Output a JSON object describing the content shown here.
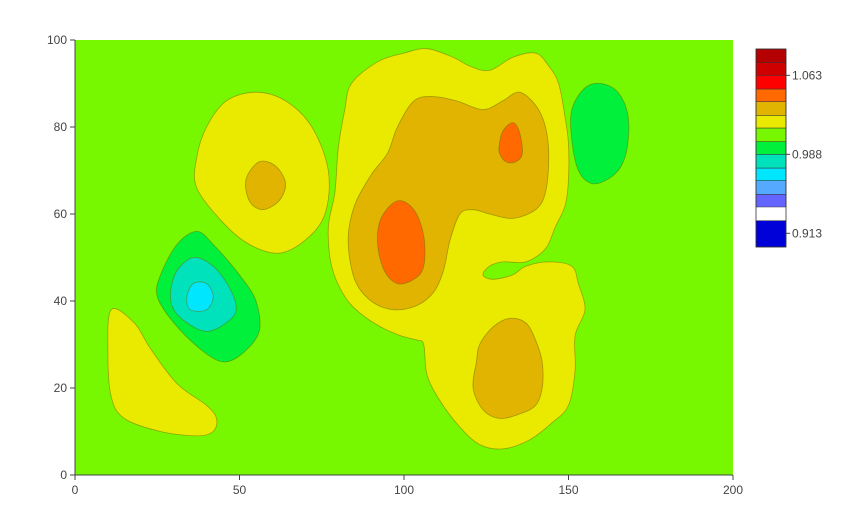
{
  "chart_data": {
    "type": "contour",
    "xlim": [
      0,
      200
    ],
    "ylim": [
      0,
      100
    ],
    "x_ticks": [
      "0",
      "50",
      "100",
      "150",
      "200"
    ],
    "y_ticks": [
      "0",
      "20",
      "40",
      "60",
      "80",
      "100"
    ],
    "grid": false,
    "colorbar": {
      "placement": "right",
      "labels": [
        "1.063",
        "0.988",
        "0.913"
      ],
      "label_values": [
        1.063,
        0.988,
        0.913
      ],
      "levels": [
        0.9,
        0.913,
        0.925,
        0.938,
        0.95,
        0.963,
        0.975,
        0.988,
        1.0,
        1.013,
        1.025,
        1.038,
        1.05,
        1.063,
        1.075,
        1.088
      ],
      "colors": [
        "#0000d8",
        "#6464ff",
        "#55a9ff",
        "#00e6ff",
        "#00e2bc",
        "#00f03c",
        "#78f800",
        "#eaea00",
        "#e0b400",
        "#ff6900",
        "#ff0000",
        "#ce0000",
        "#b40000"
      ]
    },
    "background_level_color": "#78f800",
    "regions": [
      {
        "color": "#eaea00",
        "points": [
          [
            11,
            38
          ],
          [
            18,
            35
          ],
          [
            23,
            29
          ],
          [
            31,
            21
          ],
          [
            40,
            16
          ],
          [
            43,
            13
          ],
          [
            42,
            10
          ],
          [
            37,
            9
          ],
          [
            26,
            10
          ],
          [
            15,
            13
          ],
          [
            11,
            18
          ],
          [
            10,
            28
          ]
        ]
      },
      {
        "color": "#00f03c",
        "points": [
          [
            26,
            46
          ],
          [
            31,
            53
          ],
          [
            37,
            56
          ],
          [
            42,
            53
          ],
          [
            50,
            46
          ],
          [
            55,
            40
          ],
          [
            56,
            33
          ],
          [
            51,
            28
          ],
          [
            45,
            26
          ],
          [
            38,
            29
          ],
          [
            30,
            35
          ],
          [
            25,
            41
          ]
        ]
      },
      {
        "color": "#00e2bc",
        "points": [
          [
            29,
            42
          ],
          [
            31,
            47
          ],
          [
            36,
            50
          ],
          [
            42,
            48
          ],
          [
            47,
            43
          ],
          [
            49,
            38
          ],
          [
            46,
            35
          ],
          [
            40,
            33
          ],
          [
            34,
            35
          ],
          [
            30,
            38
          ]
        ]
      },
      {
        "color": "#00e6ff",
        "points": [
          [
            34,
            41
          ],
          [
            36,
            44
          ],
          [
            40,
            44
          ],
          [
            42,
            41
          ],
          [
            40,
            38
          ],
          [
            35,
            38
          ]
        ]
      },
      {
        "color": "#eaea00",
        "points": [
          [
            37,
            73
          ],
          [
            40,
            80
          ],
          [
            46,
            86
          ],
          [
            55,
            88
          ],
          [
            64,
            86
          ],
          [
            72,
            80
          ],
          [
            77,
            70
          ],
          [
            76,
            60
          ],
          [
            70,
            54
          ],
          [
            62,
            51
          ],
          [
            53,
            53
          ],
          [
            45,
            58
          ],
          [
            37,
            66
          ]
        ]
      },
      {
        "color": "#e0b400",
        "points": [
          [
            52,
            68
          ],
          [
            56,
            72
          ],
          [
            61,
            71
          ],
          [
            64,
            67
          ],
          [
            62,
            63
          ],
          [
            57,
            61
          ],
          [
            53,
            63
          ]
        ]
      },
      {
        "color": "#eaea00",
        "points": [
          [
            84,
            90
          ],
          [
            92,
            95
          ],
          [
            100,
            97
          ],
          [
            107,
            98
          ],
          [
            115,
            96
          ],
          [
            120,
            94
          ],
          [
            126,
            93
          ],
          [
            133,
            96
          ],
          [
            140,
            97
          ],
          [
            144,
            94
          ],
          [
            147,
            90
          ],
          [
            149,
            82
          ],
          [
            150,
            76
          ],
          [
            150,
            68
          ],
          [
            149,
            62
          ],
          [
            146,
            57
          ],
          [
            143,
            52
          ],
          [
            137,
            49
          ],
          [
            130,
            49
          ],
          [
            126,
            48
          ],
          [
            124,
            46
          ],
          [
            127,
            45
          ],
          [
            133,
            46
          ],
          [
            137,
            48
          ],
          [
            144,
            49
          ],
          [
            151,
            48
          ],
          [
            153,
            44
          ],
          [
            155,
            38
          ],
          [
            152,
            32
          ],
          [
            152,
            24
          ],
          [
            150,
            16
          ],
          [
            145,
            12
          ],
          [
            138,
            8
          ],
          [
            130,
            6
          ],
          [
            123,
            7
          ],
          [
            117,
            11
          ],
          [
            111,
            17
          ],
          [
            107,
            23
          ],
          [
            106,
            30
          ],
          [
            104,
            31
          ],
          [
            99,
            32
          ],
          [
            93,
            34
          ],
          [
            87,
            37
          ],
          [
            82,
            41
          ],
          [
            78,
            48
          ],
          [
            77,
            57
          ],
          [
            79,
            65
          ],
          [
            80,
            75
          ],
          [
            82,
            84
          ]
        ]
      },
      {
        "color": "#e0b400",
        "points": [
          [
            98,
            80
          ],
          [
            103,
            86
          ],
          [
            109,
            87
          ],
          [
            116,
            86
          ],
          [
            124,
            84
          ],
          [
            130,
            86
          ],
          [
            135,
            88
          ],
          [
            140,
            85
          ],
          [
            143,
            80
          ],
          [
            144,
            73
          ],
          [
            143,
            65
          ],
          [
            140,
            61
          ],
          [
            133,
            59
          ],
          [
            126,
            60
          ],
          [
            121,
            61
          ],
          [
            117,
            60
          ],
          [
            114,
            54
          ],
          [
            112,
            47
          ],
          [
            109,
            42
          ],
          [
            104,
            39
          ],
          [
            97,
            38
          ],
          [
            90,
            40
          ],
          [
            85,
            45
          ],
          [
            83,
            54
          ],
          [
            85,
            62
          ],
          [
            90,
            69
          ],
          [
            95,
            74
          ]
        ]
      },
      {
        "color": "#ff6900",
        "points": [
          [
            93,
            59
          ],
          [
            98,
            63
          ],
          [
            103,
            61
          ],
          [
            106,
            55
          ],
          [
            106,
            48
          ],
          [
            103,
            45
          ],
          [
            98,
            44
          ],
          [
            94,
            47
          ],
          [
            92,
            53
          ]
        ]
      },
      {
        "color": "#ff6900",
        "points": [
          [
            129,
            76
          ],
          [
            130,
            79
          ],
          [
            133,
            81
          ],
          [
            135,
            79
          ],
          [
            136,
            74
          ],
          [
            134,
            72
          ],
          [
            131,
            72
          ],
          [
            129,
            74
          ]
        ]
      },
      {
        "color": "#e0b400",
        "points": [
          [
            123,
            30
          ],
          [
            127,
            34
          ],
          [
            132,
            36
          ],
          [
            137,
            35
          ],
          [
            140,
            31
          ],
          [
            142,
            26
          ],
          [
            142,
            20
          ],
          [
            140,
            16
          ],
          [
            135,
            14
          ],
          [
            129,
            13
          ],
          [
            124,
            15
          ],
          [
            121,
            20
          ],
          [
            122,
            26
          ]
        ]
      },
      {
        "color": "#00f03c",
        "points": [
          [
            151,
            84
          ],
          [
            155,
            89
          ],
          [
            160,
            90
          ],
          [
            165,
            88
          ],
          [
            168,
            83
          ],
          [
            168,
            76
          ],
          [
            166,
            71
          ],
          [
            162,
            68
          ],
          [
            157,
            67
          ],
          [
            153,
            70
          ],
          [
            151,
            77
          ]
        ]
      }
    ]
  }
}
